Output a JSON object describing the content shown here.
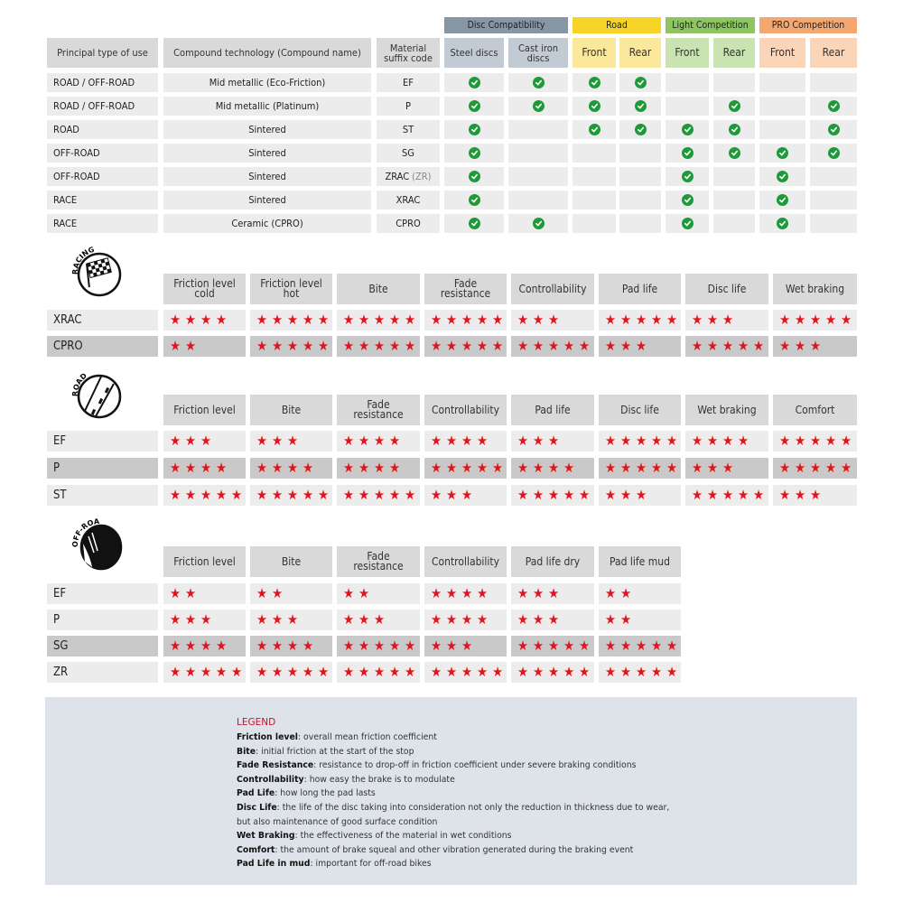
{
  "compat": {
    "groups": [
      {
        "label": "Disc Compatibility",
        "color": "#8796a5",
        "sub_color": "#c2cbd3"
      },
      {
        "label": "Road",
        "color": "#f5d327",
        "sub_color": "#fbe89c"
      },
      {
        "label": "Light Competition",
        "color": "#8dc563",
        "sub_color": "#c9e4b2"
      },
      {
        "label": "PRO Competition",
        "color": "#f4a871",
        "sub_color": "#fbd5b8"
      }
    ],
    "headers": [
      "Principal type of use",
      "Compound technology (Compound name)",
      "Material suffix code",
      "Steel discs",
      "Cast iron discs",
      "Front",
      "Rear",
      "Front",
      "Rear",
      "Front",
      "Rear"
    ],
    "rows": [
      {
        "use": "ROAD / OFF-ROAD",
        "compound": "Mid metallic (Eco-Friction)",
        "code": "EF",
        "code_extra": "",
        "checks": [
          1,
          1,
          1,
          1,
          0,
          0,
          0,
          0
        ]
      },
      {
        "use": "ROAD / OFF-ROAD",
        "compound": "Mid metallic (Platinum)",
        "code": "P",
        "code_extra": "",
        "checks": [
          1,
          1,
          1,
          1,
          0,
          1,
          0,
          1
        ]
      },
      {
        "use": "ROAD",
        "compound": "Sintered",
        "code": "ST",
        "code_extra": "",
        "checks": [
          1,
          0,
          1,
          1,
          1,
          1,
          0,
          1
        ]
      },
      {
        "use": "OFF-ROAD",
        "compound": "Sintered",
        "code": "SG",
        "code_extra": "",
        "checks": [
          1,
          0,
          0,
          0,
          1,
          1,
          1,
          1
        ]
      },
      {
        "use": "OFF-ROAD",
        "compound": "Sintered",
        "code": "ZRAC",
        "code_extra": "(ZR)",
        "checks": [
          1,
          0,
          0,
          0,
          1,
          0,
          1,
          0
        ]
      },
      {
        "use": "RACE",
        "compound": "Sintered",
        "code": "XRAC",
        "code_extra": "",
        "checks": [
          1,
          0,
          0,
          0,
          1,
          0,
          1,
          0
        ]
      },
      {
        "use": "RACE",
        "compound": "Ceramic (CPRO)",
        "code": "CPRO",
        "code_extra": "",
        "checks": [
          1,
          1,
          0,
          0,
          1,
          0,
          1,
          0
        ]
      }
    ]
  },
  "ratings": [
    {
      "badge": "RACING",
      "headers": [
        "Friction level cold",
        "Friction level hot",
        "Bite",
        "Fade resistance",
        "Controllability",
        "Pad life",
        "Disc life",
        "Wet braking"
      ],
      "rows": [
        {
          "code": "XRAC",
          "shaded": false,
          "stars": [
            4,
            5,
            5,
            5,
            3,
            5,
            3,
            5
          ]
        },
        {
          "code": "CPRO",
          "shaded": true,
          "stars": [
            2,
            5,
            5,
            5,
            5,
            3,
            5,
            3
          ]
        }
      ]
    },
    {
      "badge": "ROAD",
      "headers": [
        "Friction level",
        "Bite",
        "Fade resistance",
        "Controllability",
        "Pad life",
        "Disc life",
        "Wet braking",
        "Comfort"
      ],
      "rows": [
        {
          "code": "EF",
          "shaded": false,
          "stars": [
            3,
            3,
            4,
            4,
            3,
            5,
            4,
            5
          ]
        },
        {
          "code": "P",
          "shaded": true,
          "stars": [
            4,
            4,
            4,
            5,
            4,
            5,
            3,
            5
          ]
        },
        {
          "code": "ST",
          "shaded": false,
          "stars": [
            5,
            5,
            5,
            3,
            5,
            3,
            5,
            3
          ]
        }
      ]
    },
    {
      "badge": "OFF-ROAD",
      "headers": [
        "Friction level",
        "Bite",
        "Fade resistance",
        "Controllability",
        "Pad life dry",
        "Pad life mud"
      ],
      "rows": [
        {
          "code": "EF",
          "shaded": false,
          "stars": [
            2,
            2,
            2,
            4,
            3,
            2
          ]
        },
        {
          "code": "P",
          "shaded": false,
          "stars": [
            3,
            3,
            3,
            4,
            3,
            2
          ]
        },
        {
          "code": "SG",
          "shaded": true,
          "stars": [
            4,
            4,
            5,
            3,
            5,
            5
          ]
        },
        {
          "code": "ZR",
          "shaded": false,
          "stars": [
            5,
            5,
            5,
            5,
            5,
            5
          ]
        }
      ]
    }
  ],
  "legend": {
    "title": "LEGEND",
    "items": [
      {
        "term": "Friction level",
        "desc": ": overall mean friction coefficient"
      },
      {
        "term": "Bite",
        "desc": ": initial friction at the start of the stop"
      },
      {
        "term": "Fade Resistance",
        "desc": ": resistance to drop-off in friction coefficient under severe braking conditions"
      },
      {
        "term": "Controllability",
        "desc": ": how easy the brake is to modulate"
      },
      {
        "term": "Pad Life",
        "desc": ": how long the pad lasts"
      },
      {
        "term": "Disc Life",
        "desc": ": the life of the disc taking into consideration not only the reduction in thickness due to wear,"
      },
      {
        "term": "",
        "desc": "but also maintenance of good surface condition"
      },
      {
        "term": "Wet Braking",
        "desc": ": the effectiveness of the material in wet conditions"
      },
      {
        "term": "Comfort",
        "desc": ": the amount of brake squeal and other vibration generated during the braking event"
      },
      {
        "term": "Pad Life in mud",
        "desc": ": important for off-road bikes"
      }
    ]
  },
  "colors": {
    "star": "#e0151d",
    "check": "#1e9a3a",
    "legend_title": "#c8102e"
  }
}
